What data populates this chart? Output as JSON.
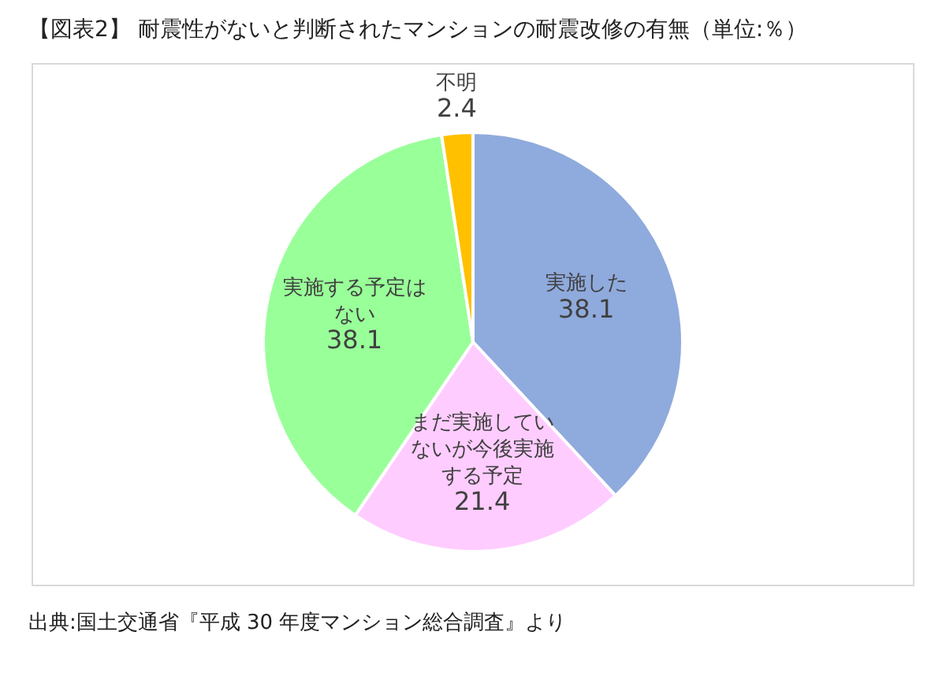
{
  "chart_data": {
    "type": "pie",
    "title": "【図表2】 耐震性がないと判断されたマンションの耐震改修の有無（単位:％）",
    "categories": [
      "実施した",
      "まだ実施していないが今後実施する予定",
      "実施する予定はない",
      "不明"
    ],
    "values": [
      38.1,
      21.4,
      38.1,
      2.4
    ],
    "colors": [
      "#8faadc",
      "#ffccff",
      "#99ff99",
      "#ffc000"
    ],
    "data_labels": true,
    "legend": false,
    "annotations": [
      "出典:国土交通省『平成 30 年度マンション総合調査』より"
    ]
  }
}
